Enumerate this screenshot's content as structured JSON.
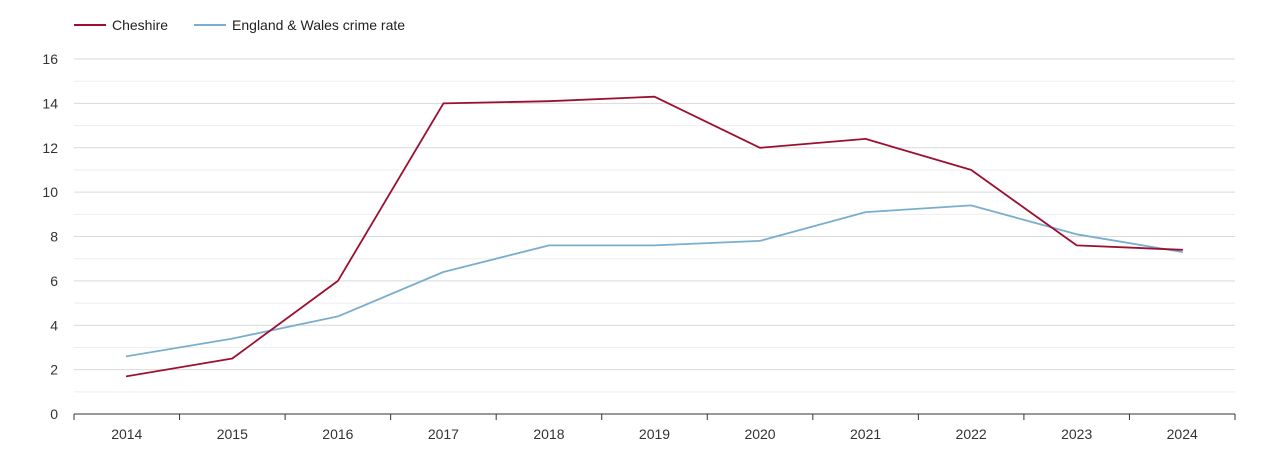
{
  "chart_data": {
    "type": "line",
    "title": "",
    "xlabel": "",
    "ylabel": "",
    "categories": [
      "2014",
      "2015",
      "2016",
      "2017",
      "2018",
      "2019",
      "2020",
      "2021",
      "2022",
      "2023",
      "2024"
    ],
    "ylim": [
      0,
      16
    ],
    "yticks": [
      0,
      2,
      4,
      6,
      8,
      10,
      12,
      14,
      16
    ],
    "grid": true,
    "legend_position": "top-left",
    "series": [
      {
        "name": "Cheshire",
        "color": "#9b1030",
        "values": [
          1.7,
          2.5,
          6.0,
          14.0,
          14.1,
          14.3,
          12.0,
          12.4,
          11.0,
          7.6,
          7.4
        ]
      },
      {
        "name": "England & Wales crime rate",
        "color": "#7aaece",
        "values": [
          2.6,
          3.4,
          4.4,
          6.4,
          7.6,
          7.6,
          7.8,
          9.1,
          9.4,
          8.1,
          7.3
        ]
      }
    ]
  }
}
